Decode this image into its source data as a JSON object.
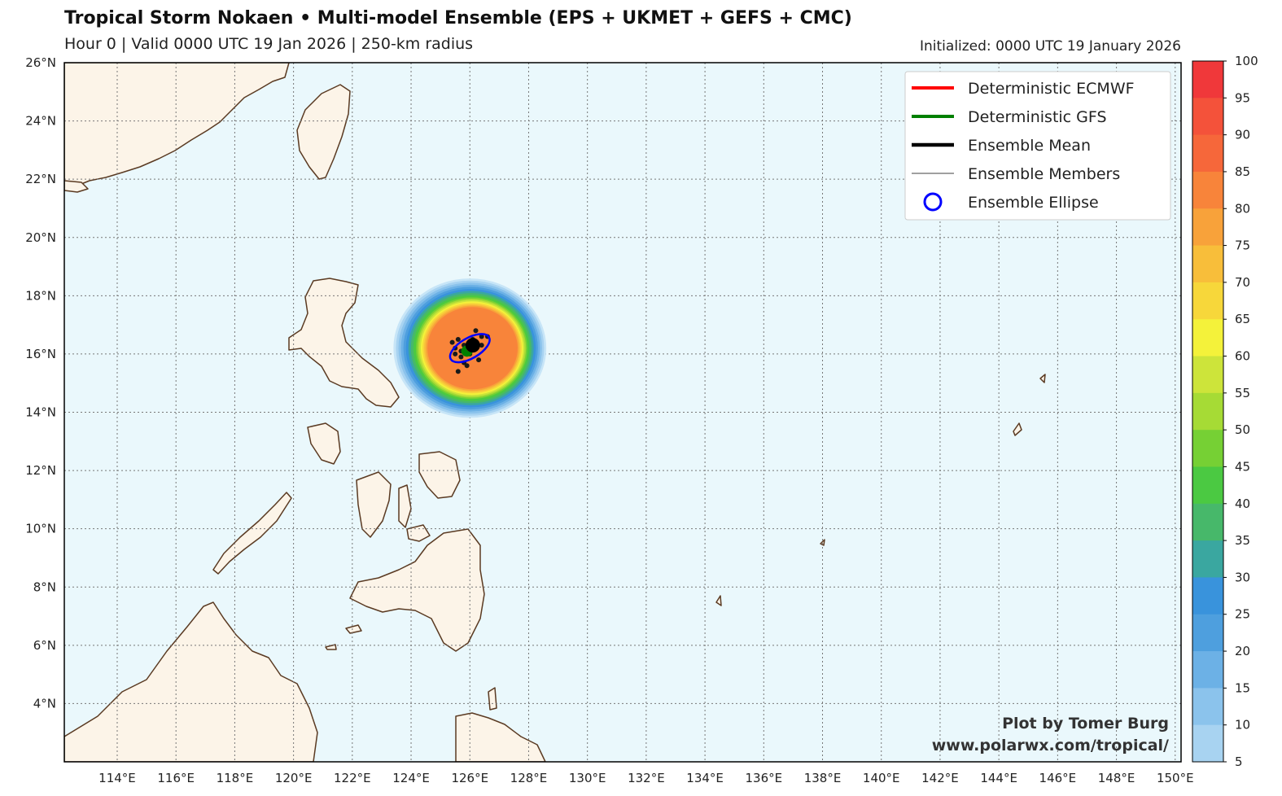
{
  "header": {
    "title": "Tropical Storm Nokaen • Multi-model Ensemble (EPS + UKMET + GEFS + CMC)",
    "subtitle": "Hour 0 | Valid 0000 UTC 19 Jan 2026 | 250-km radius",
    "initialized": "Initialized: 0000 UTC 19 January 2026"
  },
  "map": {
    "lon_range": [
      112.2,
      150.2
    ],
    "lat_range": [
      2.0,
      26.0
    ],
    "lon_ticks": [
      "114°E",
      "116°E",
      "118°E",
      "120°E",
      "122°E",
      "124°E",
      "126°E",
      "128°E",
      "130°E",
      "132°E",
      "134°E",
      "136°E",
      "138°E",
      "140°E",
      "142°E",
      "144°E",
      "146°E",
      "148°E",
      "150°E"
    ],
    "lat_ticks": [
      "4°N",
      "6°N",
      "8°N",
      "10°N",
      "12°N",
      "14°N",
      "16°N",
      "18°N",
      "20°N",
      "22°N",
      "24°N",
      "26°N"
    ],
    "ocean_color": "#eaf8fc",
    "land_color": "#fcf4e8",
    "coast_color": "#5a3a22"
  },
  "legend": {
    "entries": [
      {
        "label": "Deterministic ECMWF",
        "color": "#ff0000",
        "symbol": "line"
      },
      {
        "label": "Deterministic GFS",
        "color": "#008000",
        "symbol": "line"
      },
      {
        "label": "Ensemble Mean",
        "color": "#000000",
        "symbol": "thick-line"
      },
      {
        "label": "Ensemble Members",
        "color": "#000000",
        "symbol": "thin-line"
      },
      {
        "label": "Ensemble Ellipse",
        "color": "#0000ff",
        "symbol": "circle"
      }
    ]
  },
  "probability": {
    "center_lon": 126.0,
    "center_lat": 16.2,
    "outer_radius_deg": 2.6,
    "levels": [
      5,
      10,
      15,
      20,
      25,
      30,
      35,
      40,
      45,
      50,
      55,
      60,
      65,
      70,
      75,
      80,
      85,
      90,
      95,
      100
    ],
    "colors": [
      "#c7e5f7",
      "#a8d3f1",
      "#8bc3ec",
      "#6cb1e6",
      "#4e9fde",
      "#3993dc",
      "#3aa7a0",
      "#47b86a",
      "#4bc942",
      "#76d034",
      "#a6db35",
      "#cde43a",
      "#f4f23a",
      "#f7d73a",
      "#f8be3a",
      "#f8a23a",
      "#f8843a",
      "#f6673a",
      "#f4523a",
      "#f0383a"
    ]
  },
  "chart_data": {
    "type": "scatter",
    "ensemble_members": {
      "lon": [
        125.5,
        125.8,
        126.2,
        126.4,
        125.7,
        125.9,
        126.1,
        125.6,
        126.3,
        125.4,
        126.6,
        125.8,
        126.0,
        125.5,
        126.2,
        125.9,
        125.7,
        126.4,
        125.6,
        126.1
      ],
      "lat": [
        16.0,
        16.3,
        16.4,
        16.6,
        15.9,
        16.1,
        16.2,
        16.5,
        15.8,
        16.4,
        16.6,
        15.7,
        16.0,
        16.2,
        16.8,
        15.6,
        16.1,
        16.3,
        15.4,
        16.5
      ]
    },
    "ensemble_mean": {
      "lon": 126.1,
      "lat": 16.3
    },
    "deterministic_gfs": {
      "lon": 125.9,
      "lat": 16.1
    },
    "deterministic_ecmwf": {
      "lon": 126.0,
      "lat": 16.2
    },
    "ensemble_ellipse": {
      "center_lon": 126.0,
      "center_lat": 16.2,
      "semi_major_deg": 0.75,
      "semi_minor_deg": 0.35,
      "rotation_deg": -30
    },
    "colorbar": {
      "min": 5,
      "max": 100,
      "ticks": [
        "100",
        "95",
        "90",
        "85",
        "80",
        "75",
        "70",
        "65",
        "60",
        "55",
        "50",
        "45",
        "40",
        "35",
        "30",
        "25",
        "20",
        "15",
        "10",
        "5"
      ]
    }
  },
  "credits": {
    "line1": "Plot by Tomer Burg",
    "line2": "www.polarwx.com/tropical/"
  }
}
